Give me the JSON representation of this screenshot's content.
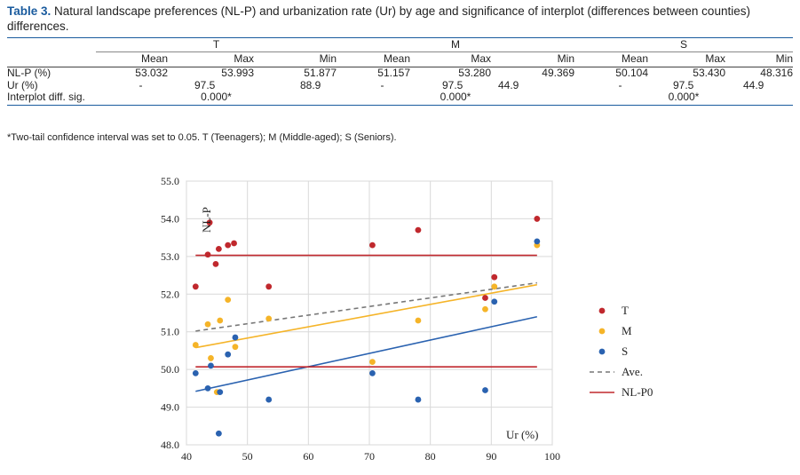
{
  "caption": {
    "label": "Table 3.",
    "text": " Natural landscape preferences (NL-P) and urbanization rate (Ur) by age and significance of interplot (differences between counties) differences."
  },
  "table": {
    "groups": [
      "T",
      "M",
      "S"
    ],
    "subheaders": [
      "Mean",
      "Max",
      "Min"
    ],
    "rows": [
      {
        "label": "NL-P (%)",
        "T": [
          "53.032",
          "53.993",
          "51.877"
        ],
        "M": [
          "51.157",
          "53.280",
          "49.369"
        ],
        "S": [
          "50.104",
          "53.430",
          "48.316"
        ]
      },
      {
        "label": "Ur (%)",
        "T": [
          "-",
          "97.5",
          "88.9"
        ],
        "M": [
          "-",
          "97.5",
          "44.9"
        ],
        "S": [
          "-",
          "97.5",
          "44.9"
        ]
      }
    ],
    "sig_row": {
      "label": "Interplot diff. sig.",
      "T": "0.000*",
      "M": "0.000*",
      "S": "0.000*"
    }
  },
  "note": "*Two-tail confidence interval was set to 0.05. T (Teenagers); M (Middle-aged); S (Seniors).",
  "chart_data": {
    "type": "scatter",
    "ylabel": "NL-P",
    "xlabel": "Ur (%)",
    "xlim": [
      40,
      100
    ],
    "ylim": [
      48.0,
      55.0
    ],
    "xticks": [
      "40",
      "50",
      "60",
      "70",
      "80",
      "90",
      "100"
    ],
    "yticks": [
      "48.0",
      "49.0",
      "50.0",
      "51.0",
      "52.0",
      "53.0",
      "54.0",
      "55.0"
    ],
    "grid": true,
    "legend_position": "right",
    "series": [
      {
        "name": "T",
        "color": "#c0282d",
        "points": [
          [
            41.5,
            52.2
          ],
          [
            43.5,
            53.05
          ],
          [
            43.8,
            53.9
          ],
          [
            44.8,
            52.8
          ],
          [
            45.3,
            53.2
          ],
          [
            46.8,
            53.3
          ],
          [
            47.8,
            53.35
          ],
          [
            53.5,
            52.2
          ],
          [
            70.5,
            53.3
          ],
          [
            78,
            53.7
          ],
          [
            89,
            51.9
          ],
          [
            90.5,
            52.45
          ],
          [
            97.5,
            54.0
          ]
        ]
      },
      {
        "name": "M",
        "color": "#f5b428",
        "points": [
          [
            41.5,
            50.65
          ],
          [
            43.5,
            51.2
          ],
          [
            44,
            50.3
          ],
          [
            45,
            49.4
          ],
          [
            45.5,
            51.3
          ],
          [
            46.8,
            51.85
          ],
          [
            48,
            50.6
          ],
          [
            53.5,
            51.35
          ],
          [
            70.5,
            50.2
          ],
          [
            78,
            51.3
          ],
          [
            89,
            51.6
          ],
          [
            90.5,
            52.2
          ],
          [
            97.5,
            53.3
          ]
        ]
      },
      {
        "name": "S",
        "color": "#2a62b0",
        "points": [
          [
            41.5,
            49.9
          ],
          [
            43.5,
            49.5
          ],
          [
            44,
            50.1
          ],
          [
            45.3,
            48.3
          ],
          [
            45.5,
            49.4
          ],
          [
            46.8,
            50.4
          ],
          [
            48,
            50.85
          ],
          [
            53.5,
            49.2
          ],
          [
            70.5,
            49.9
          ],
          [
            78,
            49.2
          ],
          [
            89,
            49.45
          ],
          [
            90.5,
            51.8
          ],
          [
            97.5,
            53.4
          ]
        ]
      }
    ],
    "lines": [
      {
        "name": "Ave.",
        "color": "#777777",
        "dash": true,
        "from": [
          41.5,
          51.02
        ],
        "to": [
          97.5,
          52.3
        ]
      },
      {
        "name": "M-trend",
        "color": "#f5b428",
        "from": [
          41.5,
          50.58
        ],
        "to": [
          97.5,
          52.25
        ]
      },
      {
        "name": "S-trend",
        "color": "#2a62b0",
        "from": [
          41.5,
          49.42
        ],
        "to": [
          97.5,
          51.4
        ]
      },
      {
        "name": "T-mean",
        "color": "#c0282d",
        "from": [
          41.5,
          53.03
        ],
        "to": [
          97.5,
          53.03
        ]
      },
      {
        "name": "NL-P0",
        "color": "#c0282d",
        "from": [
          41.5,
          50.07
        ],
        "to": [
          97.5,
          50.07
        ]
      }
    ],
    "legend": [
      {
        "label": "T",
        "kind": "dot",
        "color": "#c0282d"
      },
      {
        "label": "M",
        "kind": "dot",
        "color": "#f5b428"
      },
      {
        "label": "S",
        "kind": "dot",
        "color": "#2a62b0"
      },
      {
        "label": "Ave.",
        "kind": "dash",
        "color": "#777777"
      },
      {
        "label": "NL-P0",
        "kind": "line",
        "color": "#c0282d"
      }
    ]
  }
}
